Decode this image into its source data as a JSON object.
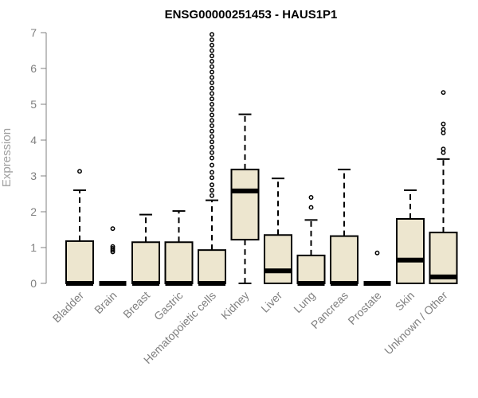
{
  "chart_data": {
    "type": "box",
    "title": "ENSG00000251453 - HAUS1P1",
    "ylabel": "Expression",
    "xlabel": "",
    "ylim": [
      0,
      7
    ],
    "yticks": [
      0,
      1,
      2,
      3,
      4,
      5,
      6,
      7
    ],
    "categories": [
      "Bladder",
      "Brain",
      "Breast",
      "Gastric",
      "Hematopoietic cells",
      "Kidney",
      "Liver",
      "Lung",
      "Pancreas",
      "Prostate",
      "Skin",
      "Unknown / Other"
    ],
    "boxes": [
      {
        "category": "Bladder",
        "min": 0,
        "q1": 0,
        "median": 0,
        "q3": 1.18,
        "whisker_low": 0,
        "whisker_high": 2.6,
        "outliers": [
          3.13
        ]
      },
      {
        "category": "Brain",
        "min": 0,
        "q1": 0,
        "median": 0,
        "q3": 0,
        "whisker_low": 0,
        "whisker_high": 0,
        "outliers": [
          0.88,
          0.93,
          0.98,
          1.03,
          1.53
        ]
      },
      {
        "category": "Breast",
        "min": 0,
        "q1": 0,
        "median": 0,
        "q3": 1.15,
        "whisker_low": 0,
        "whisker_high": 1.92,
        "outliers": []
      },
      {
        "category": "Gastric",
        "min": 0,
        "q1": 0,
        "median": 0,
        "q3": 1.15,
        "whisker_low": 0,
        "whisker_high": 2.02,
        "outliers": []
      },
      {
        "category": "Hematopoietic cells",
        "min": 0,
        "q1": 0,
        "median": 0,
        "q3": 0.93,
        "whisker_low": 0,
        "whisker_high": 2.32,
        "outliers": [
          2.45,
          2.6,
          2.75,
          2.95,
          3.1,
          3.3,
          3.5,
          3.65,
          3.8,
          3.95,
          4.1,
          4.25,
          4.4,
          4.55,
          4.7,
          4.85,
          5.0,
          5.15,
          5.3,
          5.45,
          5.6,
          5.75,
          5.9,
          6.05,
          6.2,
          6.35,
          6.5,
          6.65,
          6.8,
          6.95
        ]
      },
      {
        "category": "Kidney",
        "min": 0,
        "q1": 1.22,
        "median": 2.58,
        "q3": 3.18,
        "whisker_low": 0,
        "whisker_high": 4.72,
        "outliers": []
      },
      {
        "category": "Liver",
        "min": 0,
        "q1": 0,
        "median": 0.35,
        "q3": 1.35,
        "whisker_low": 0,
        "whisker_high": 2.93,
        "outliers": []
      },
      {
        "category": "Lung",
        "min": 0,
        "q1": 0,
        "median": 0,
        "q3": 0.78,
        "whisker_low": 0,
        "whisker_high": 1.77,
        "outliers": [
          2.12,
          2.4
        ]
      },
      {
        "category": "Pancreas",
        "min": 0,
        "q1": 0,
        "median": 0,
        "q3": 1.32,
        "whisker_low": 0,
        "whisker_high": 3.18,
        "outliers": []
      },
      {
        "category": "Prostate",
        "min": 0,
        "q1": 0,
        "median": 0,
        "q3": 0,
        "whisker_low": 0,
        "whisker_high": 0,
        "outliers": [
          0.85
        ]
      },
      {
        "category": "Skin",
        "min": 0,
        "q1": 0,
        "median": 0.65,
        "q3": 1.8,
        "whisker_low": 0,
        "whisker_high": 2.6,
        "outliers": []
      },
      {
        "category": "Unknown / Other",
        "min": 0,
        "q1": 0,
        "median": 0.18,
        "q3": 1.42,
        "whisker_low": 0,
        "whisker_high": 3.47,
        "outliers": [
          3.65,
          3.75,
          4.2,
          4.3,
          4.45,
          5.33
        ]
      }
    ],
    "colors": {
      "box_fill": "#ede6cf",
      "stroke": "#000000",
      "axis_text": "#808080"
    },
    "grid": false,
    "legend": "none"
  }
}
